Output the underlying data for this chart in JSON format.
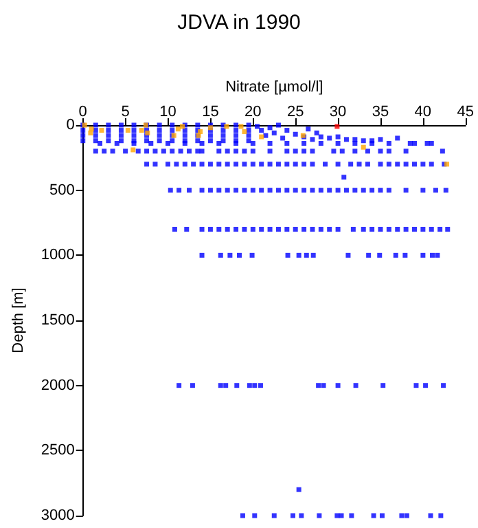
{
  "chart_data": {
    "type": "scatter",
    "title": "JDVA in 1990",
    "xlabel": "Nitrate [µmol/l]",
    "ylabel": "Depth [m]",
    "xlim": [
      0,
      45
    ],
    "xticks": [
      0,
      5,
      10,
      15,
      20,
      25,
      30,
      35,
      40,
      45
    ],
    "ylim": [
      3000,
      0
    ],
    "yticks": [
      0,
      500,
      1000,
      1500,
      2000,
      2500,
      3000
    ],
    "grid": false,
    "marker": "square",
    "series": [
      {
        "color": "#0000ff",
        "x": [
          0,
          1.5,
          3,
          4.5,
          6,
          7.5,
          9,
          10.5,
          12,
          13.5,
          15,
          16.5,
          18,
          19.5,
          0,
          1.5,
          3,
          4.5,
          6,
          7.5,
          9,
          10.5,
          12,
          13.5,
          15,
          16.5,
          18,
          19.5,
          0,
          1.5,
          3,
          4.5,
          6,
          7.5,
          9,
          10.5,
          12,
          13.5,
          15,
          16.5,
          18,
          19.5,
          0,
          1.5,
          3,
          4.5,
          6,
          7.5,
          9,
          10.5,
          12,
          13.5,
          15,
          16.5,
          18,
          19.5,
          2,
          4,
          6,
          8,
          10,
          12,
          14,
          16,
          18,
          20,
          22,
          24,
          26,
          28,
          30,
          32,
          34,
          36,
          20.5,
          21,
          21.5,
          22,
          22.5,
          23,
          23.5,
          24,
          25,
          26,
          26.5,
          27,
          27.5,
          28,
          29,
          30,
          31,
          32,
          33,
          34,
          35,
          37,
          38.5,
          39,
          40.5,
          41,
          1.5,
          2.5,
          3.5,
          5,
          6.5,
          7.5,
          8.5,
          9.5,
          10.5,
          11.5,
          12.5,
          13.5,
          14,
          16,
          17,
          18,
          19,
          20,
          22,
          24,
          25,
          26,
          27,
          29.5,
          30.5,
          32,
          33.5,
          35,
          36,
          38,
          42.3,
          7.5,
          8.5,
          10,
          11,
          12,
          13,
          14,
          15,
          16,
          17,
          18,
          19,
          20,
          21,
          22,
          23,
          24,
          25,
          26,
          27,
          28.5,
          30,
          31.5,
          32.5,
          33.5,
          35,
          36,
          37,
          38,
          39,
          40,
          41,
          42.5,
          30.7,
          10.3,
          11.3,
          12.5,
          14,
          15,
          16,
          17,
          18,
          19,
          20,
          21,
          22,
          23,
          24,
          25,
          26,
          27,
          28,
          29,
          30,
          31,
          32,
          33,
          34,
          35,
          36,
          38,
          40,
          41.5,
          42.7,
          10.8,
          12.2,
          14,
          15,
          16,
          17,
          18,
          19,
          20,
          21,
          22,
          23,
          24,
          25,
          26,
          27,
          28,
          29,
          30,
          31.8,
          33,
          34,
          35,
          36,
          37,
          38,
          39,
          40,
          41,
          42,
          42.9,
          14,
          16.2,
          17.3,
          18.4,
          19.9,
          24.1,
          25.4,
          26.3,
          27.1,
          31.2,
          33.6,
          34.9,
          36.8,
          37.9,
          40,
          41.1,
          41.7,
          11.3,
          12.9,
          16.2,
          16.8,
          18.1,
          19.6,
          20.2,
          20.9,
          27.7,
          28.3,
          30,
          32.1,
          35.3,
          39.2,
          40.3,
          42.4,
          25.4,
          18.8,
          20.2,
          22.5,
          24.7,
          25.7,
          27.8,
          29.9,
          30.4,
          31.6,
          34.2,
          35.2,
          37.5,
          38.1,
          40.9,
          42.1
        ],
        "values": [
          0,
          0,
          0,
          0,
          0,
          0,
          0,
          0,
          0,
          0,
          0,
          0,
          0,
          0,
          40,
          40,
          40,
          40,
          40,
          40,
          40,
          40,
          40,
          40,
          40,
          40,
          40,
          40,
          80,
          80,
          80,
          80,
          80,
          80,
          80,
          80,
          80,
          80,
          80,
          80,
          80,
          80,
          120,
          120,
          120,
          120,
          120,
          120,
          120,
          120,
          120,
          120,
          120,
          120,
          120,
          120,
          140,
          140,
          140,
          140,
          140,
          140,
          140,
          140,
          140,
          140,
          140,
          140,
          140,
          140,
          140,
          140,
          140,
          140,
          10,
          40,
          80,
          20,
          60,
          0,
          100,
          40,
          70,
          90,
          30,
          110,
          60,
          90,
          100,
          90,
          110,
          110,
          120,
          120,
          110,
          100,
          140,
          140,
          140,
          140,
          200,
          200,
          200,
          200,
          200,
          200,
          200,
          200,
          200,
          200,
          200,
          200,
          200,
          200,
          200,
          200,
          200,
          200,
          200,
          200,
          200,
          200,
          200,
          200,
          200,
          200,
          200,
          200,
          200,
          200,
          200,
          300,
          300,
          300,
          300,
          300,
          300,
          300,
          300,
          300,
          300,
          300,
          300,
          300,
          300,
          300,
          300,
          300,
          300,
          300,
          300,
          300,
          300,
          300,
          300,
          300,
          300,
          300,
          300,
          300,
          300,
          300,
          300,
          300,
          400,
          500,
          500,
          500,
          500,
          500,
          500,
          500,
          500,
          500,
          500,
          500,
          500,
          500,
          500,
          500,
          500,
          500,
          500,
          500,
          500,
          500,
          500,
          500,
          500,
          500,
          500,
          500,
          500,
          500,
          500,
          800,
          800,
          800,
          800,
          800,
          800,
          800,
          800,
          800,
          800,
          800,
          800,
          800,
          800,
          800,
          800,
          800,
          800,
          800,
          800,
          800,
          800,
          800,
          800,
          800,
          800,
          800,
          800,
          800,
          800,
          800,
          1000,
          1000,
          1000,
          1000,
          1000,
          1000,
          1000,
          1000,
          1000,
          1000,
          1000,
          1000,
          1000,
          1000,
          1000,
          1000,
          1000,
          2000,
          2000,
          2000,
          2000,
          2000,
          2000,
          2000,
          2000,
          2000,
          2000,
          2000,
          2000,
          2000,
          2000,
          2000,
          2000,
          2800,
          3000,
          3000,
          3000,
          3000,
          3000,
          3000,
          3000,
          3000,
          3000,
          3000,
          3000,
          3000,
          3000,
          3000,
          3000
        ]
      },
      {
        "color": "#ffa500",
        "x": [
          0.2,
          1.0,
          0.9,
          2.2,
          5.3,
          5.9,
          6.9,
          7.4,
          7.6,
          10.7,
          11.2,
          11.7,
          13.6,
          13.8,
          15.0,
          16.9,
          18.6,
          19.0,
          21.0,
          25.9,
          33.0,
          42.8
        ],
        "values": [
          0,
          30,
          60,
          40,
          40,
          190,
          40,
          0,
          60,
          80,
          30,
          10,
          80,
          50,
          20,
          10,
          10,
          50,
          90,
          80,
          170,
          300
        ]
      },
      {
        "color": "#ff0000",
        "x": [
          29.9
        ],
        "values": [
          10
        ]
      }
    ]
  }
}
